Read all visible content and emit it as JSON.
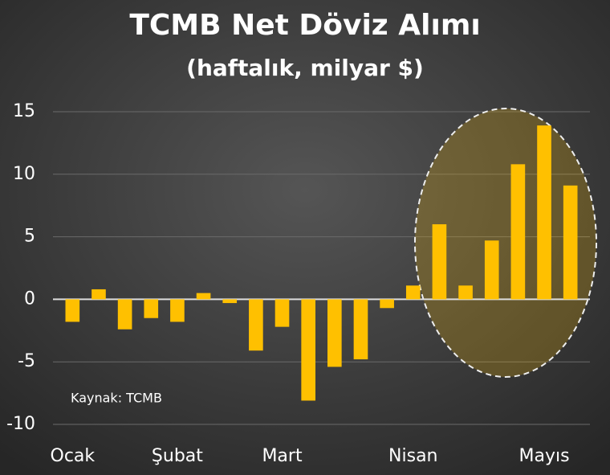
{
  "chart_data": {
    "type": "bar",
    "title": "TCMB Net Döviz Alımı",
    "subtitle": "(haftalık, milyar $)",
    "categories": [
      "Ocak",
      null,
      null,
      null,
      "Şubat",
      null,
      null,
      null,
      "Mart",
      null,
      null,
      null,
      null,
      "Nisan",
      null,
      null,
      null,
      null,
      "Mayıs",
      null
    ],
    "values": [
      -1.8,
      0.8,
      -2.4,
      -1.5,
      -1.8,
      0.5,
      -0.3,
      -4.1,
      -2.2,
      -8.1,
      -5.4,
      -4.8,
      -0.7,
      1.1,
      6.0,
      1.1,
      4.7,
      10.8,
      13.9,
      9.1
    ],
    "color": "#ffc000",
    "ylim": [
      -10,
      15
    ],
    "yticks": [
      -10,
      -5,
      0,
      5,
      10,
      15
    ],
    "grid": true,
    "annotation": "Kaynak: TCMB"
  }
}
